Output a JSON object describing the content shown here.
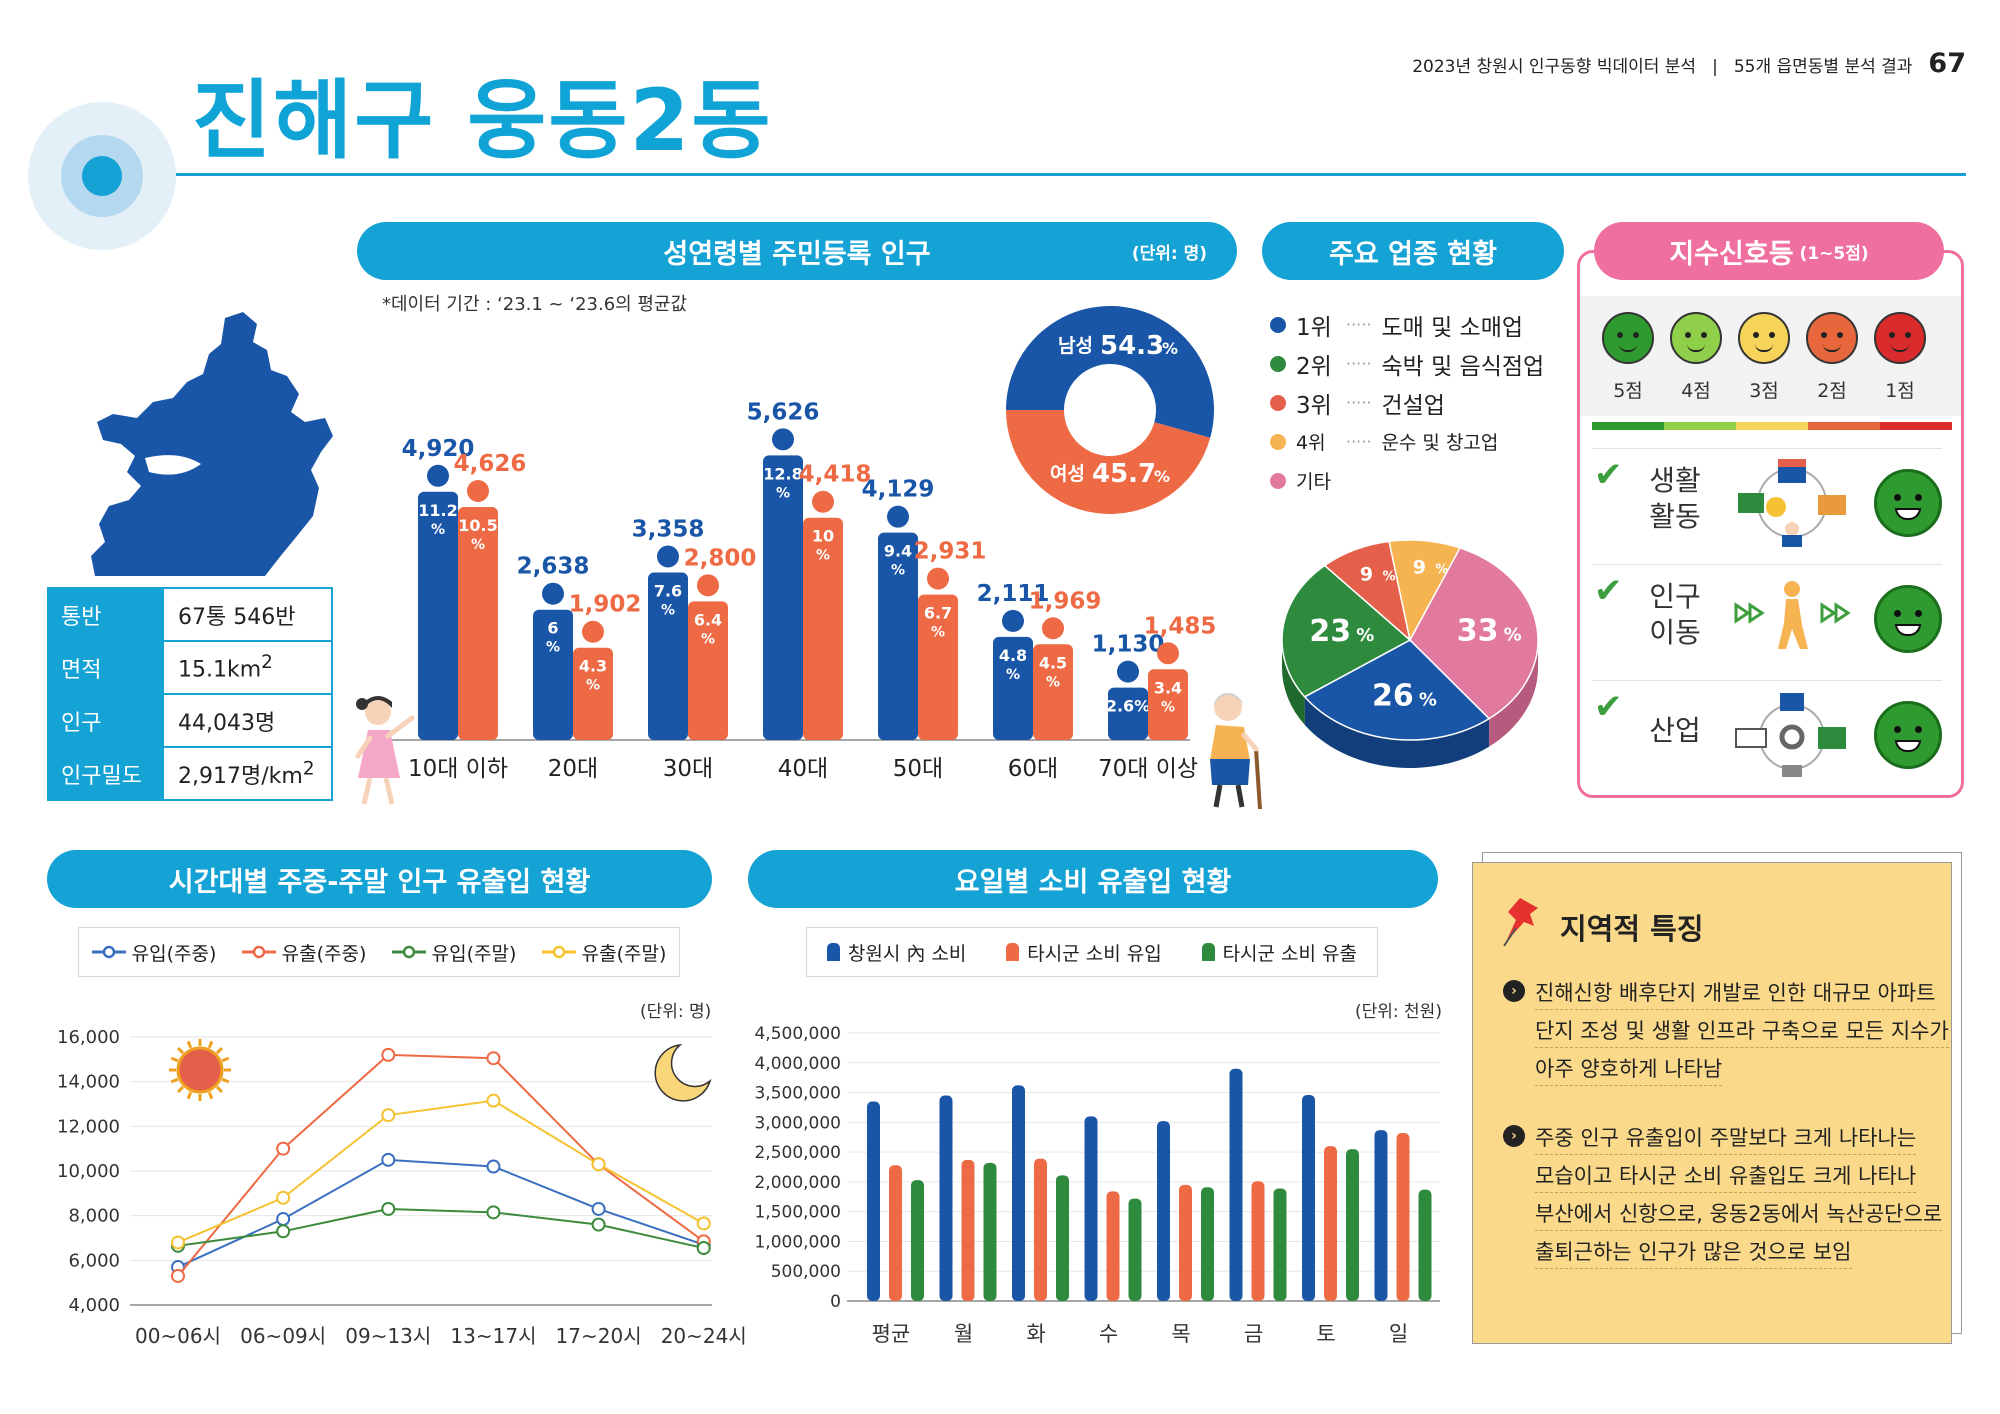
{
  "header": {
    "title": "진해구 웅동2동",
    "report": "2023년 창원시 인구동향 빅데이터 분석",
    "divider": "|",
    "section": "55개 읍면동별 분석 결과",
    "page": "67"
  },
  "population": {
    "title": "성연령별 주민등록 인구",
    "unit": "(단위: 명)",
    "note": "*데이터 기간 : ‘23.1 ~ ‘23.6의 평균값",
    "colors": {
      "male": "#1a56a8",
      "female": "#ee6a44"
    },
    "chart_data": {
      "type": "bar",
      "categories": [
        "10대 이하",
        "20대",
        "30대",
        "40대",
        "50대",
        "60대",
        "70대 이상"
      ],
      "series": [
        {
          "name": "남성",
          "values": [
            4920,
            2638,
            3358,
            5626,
            4129,
            2111,
            1130
          ],
          "labels": [
            "4,920",
            "2,638",
            "3,358",
            "5,626",
            "4,129",
            "2,111",
            "1,130"
          ],
          "pct": [
            "11.2",
            "6",
            "7.6",
            "12.8",
            "9.4",
            "4.8",
            "2.6%"
          ]
        },
        {
          "name": "여성",
          "values": [
            4626,
            1902,
            2800,
            4418,
            2931,
            1969,
            1485
          ],
          "labels": [
            "4,626",
            "1,902",
            "2,800",
            "4,418",
            "2,931",
            "1,969",
            "1,485"
          ],
          "pct": [
            "10.5",
            "4.3",
            "6.4",
            "10",
            "6.7",
            "4.5",
            "3.4"
          ]
        }
      ],
      "pct_unit": "%"
    },
    "donut": {
      "male_label": "남성",
      "male_value": "54.3",
      "male": 54.3,
      "female_label": "여성",
      "female_value": "45.7",
      "female": 45.7,
      "unit": "%"
    }
  },
  "info": [
    {
      "key": "통반",
      "value": "67통 546반"
    },
    {
      "key": "면적",
      "value": "15.1km²"
    },
    {
      "key": "인구",
      "value": "44,043명"
    },
    {
      "key": "인구밀도",
      "value": "2,917명/km²"
    }
  ],
  "industry": {
    "title": "주요 업종 현황",
    "ranks": [
      {
        "rank": "1위",
        "name": "도매 및 소매업",
        "color": "#1a56a8"
      },
      {
        "rank": "2위",
        "name": "숙박 및 음식점업",
        "color": "#2e8b3e"
      },
      {
        "rank": "3위",
        "name": "건설업",
        "color": "#e5604a"
      },
      {
        "rank": "4위",
        "name": "운수 및 창고업",
        "color": "#f5b352"
      },
      {
        "rank": "기타",
        "name": "",
        "color": "#e27aa0"
      }
    ],
    "dots": "·····",
    "chart_data": {
      "type": "pie",
      "categories": [
        "도매 및 소매업",
        "숙박 및 음식점업",
        "건설업",
        "운수 및 창고업",
        "기타"
      ],
      "values": [
        26,
        23,
        9,
        9,
        33
      ],
      "labels": [
        "26",
        "23",
        "9",
        "9",
        "33"
      ],
      "unit": "%"
    }
  },
  "signal": {
    "title": "지수신호등",
    "subtitle": "(1~5점)",
    "scores": [
      "5점",
      "4점",
      "3점",
      "2점",
      "1점"
    ],
    "face_colors": [
      "#2e9a2f",
      "#8fcf4a",
      "#f6d45a",
      "#e8663c",
      "#d92b2b"
    ],
    "rows": [
      {
        "label": "생활\n활동",
        "check": "✔",
        "score_color": "#2e9a2f"
      },
      {
        "label": "인구\n이동",
        "check": "✔",
        "score_color": "#2e9a2f"
      },
      {
        "label": "산업",
        "check": "✔",
        "score_color": "#2e9a2f"
      }
    ]
  },
  "flow": {
    "title": "시간대별 주중-주말 인구 유출입 현황",
    "unit": "(단위: 명)",
    "chart_data": {
      "type": "line",
      "x": [
        "00~06시",
        "06~09시",
        "09~13시",
        "13~17시",
        "17~20시",
        "20~24시"
      ],
      "ylim": [
        4000,
        16000
      ],
      "yticks": [
        "16,000",
        "14,000",
        "12,000",
        "10,000",
        "8,000",
        "6,000",
        "4,000"
      ],
      "series": [
        {
          "name": "유입(주중)",
          "color": "#3a6fbf",
          "values": [
            5700,
            7850,
            10500,
            10200,
            8300,
            6700
          ]
        },
        {
          "name": "유출(주중)",
          "color": "#ee6a44",
          "values": [
            5300,
            11000,
            15200,
            15050,
            10300,
            6850
          ]
        },
        {
          "name": "유입(주말)",
          "color": "#3c8a3c",
          "values": [
            6650,
            7300,
            8300,
            8150,
            7600,
            6550
          ]
        },
        {
          "name": "유출(주말)",
          "color": "#f5c232",
          "values": [
            6800,
            8800,
            12500,
            13150,
            10300,
            7650
          ]
        }
      ]
    }
  },
  "consumption": {
    "title": "요일별 소비 유출입 현황",
    "unit": "(단위: 천원)",
    "chart_data": {
      "type": "bar",
      "categories": [
        "평균",
        "월",
        "화",
        "수",
        "목",
        "금",
        "토",
        "일"
      ],
      "ylim": [
        0,
        4500000
      ],
      "yticks": [
        "4,500,000",
        "4,000,000",
        "3,500,000",
        "3,000,000",
        "2,500,000",
        "2,000,000",
        "1,500,000",
        "1,000,000",
        "500,000",
        "0"
      ],
      "series": [
        {
          "name": "창원시 內 소비",
          "color": "#1a56a8",
          "values": [
            3350000,
            3450000,
            3620000,
            3100000,
            3020000,
            3900000,
            3460000,
            2870000
          ]
        },
        {
          "name": "타시군 소비 유입",
          "color": "#ee6a44",
          "values": [
            2280000,
            2370000,
            2390000,
            1840000,
            1950000,
            2010000,
            2600000,
            2820000
          ]
        },
        {
          "name": "타시군 소비 유출",
          "color": "#2e8b3e",
          "values": [
            2030000,
            2320000,
            2110000,
            1720000,
            1910000,
            1890000,
            2550000,
            1870000
          ]
        }
      ]
    }
  },
  "regional": {
    "title": "지역적 특징",
    "bullets": [
      [
        "진해신항 배후단지 개발로 인한 대규모 아파트",
        "단지 조성 및 생활 인프라 구축으로 모든 지수가",
        "아주 양호하게 나타남"
      ],
      [
        "주중 인구 유출입이 주말보다 크게 나타나는",
        "모습이고 타시군 소비 유출입도 크게 나타나",
        "부산에서 신항으로, 웅동2동에서 녹산공단으로",
        "출퇴근하는 인구가 많은 것으로 보임"
      ]
    ]
  }
}
